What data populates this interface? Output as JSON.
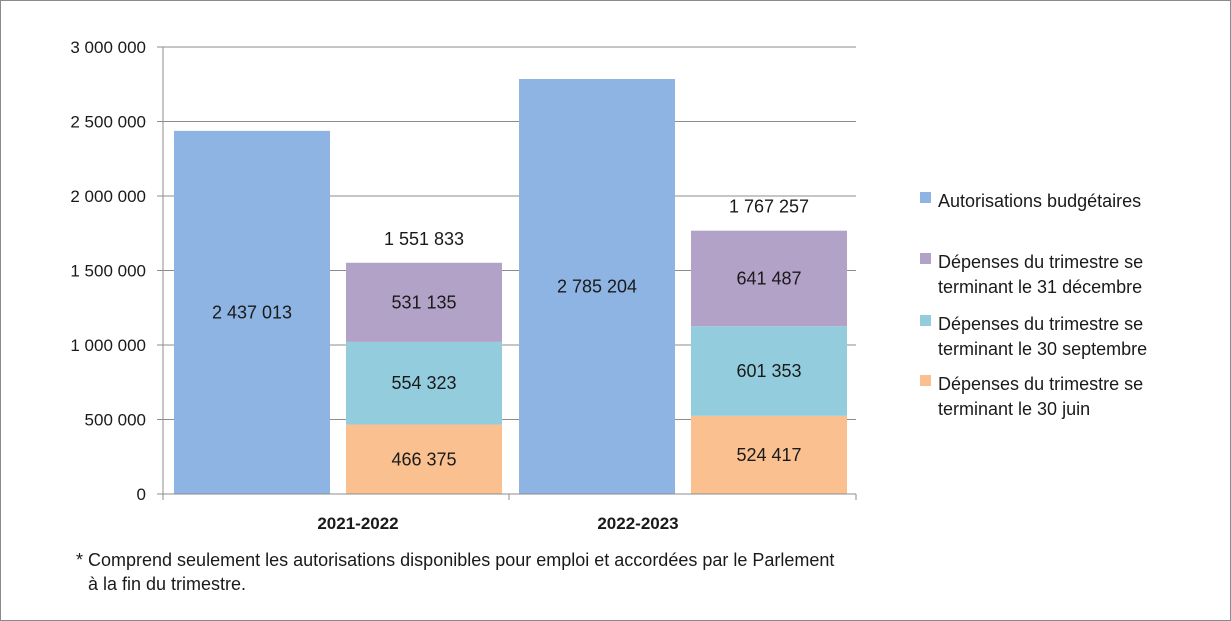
{
  "chart_data": {
    "type": "bar",
    "categories": [
      "2021-2022",
      "2022-2023"
    ],
    "y_ticks": [
      "0",
      "500 000",
      "1 000 000",
      "1 500 000",
      "2 000 000",
      "2 500 000",
      "3 000 000"
    ],
    "ylim": [
      0,
      3000000
    ],
    "grid": true,
    "legend_position": "right",
    "budget_series": {
      "name": "Autorisations budgétaires",
      "color": "#8eb4e3",
      "values": [
        2437013,
        2785204
      ],
      "labels": [
        "2 437 013",
        "2 785 204"
      ]
    },
    "stack_series": [
      {
        "name": "Dépenses du trimestre se terminant le 30 juin",
        "name_lines": [
          "Dépenses du trimestre se",
          "terminant le 30 juin"
        ],
        "color": "#fac090",
        "values": [
          466375,
          524417
        ],
        "labels": [
          "466 375",
          "524 417"
        ]
      },
      {
        "name": "Dépenses du trimestre se terminant le 30 septembre",
        "name_lines": [
          "Dépenses du trimestre se",
          "terminant le 30 septembre"
        ],
        "color": "#93cddd",
        "values": [
          554323,
          601353
        ],
        "labels": [
          "554 323",
          "601 353"
        ]
      },
      {
        "name": "Dépenses du trimestre se terminant le 31 décembre",
        "name_lines": [
          "Dépenses du trimestre se",
          "terminant le 31 décembre"
        ],
        "color": "#b3a2c7",
        "values": [
          531135,
          641487
        ],
        "labels": [
          "531 135",
          "641 487"
        ]
      }
    ],
    "stack_totals": [
      "1 551 833",
      "1 767 257"
    ],
    "legend_order": [
      "Autorisations budgétaires",
      "Dépenses du trimestre se terminant le 31 décembre",
      "Dépenses du trimestre se terminant le 30 septembre",
      "Dépenses du trimestre se terminant le 30 juin"
    ]
  },
  "footnote": {
    "line1": "* Comprend seulement les autorisations disponibles pour emploi et accordées par le Parlement",
    "line2": "à la fin du trimestre."
  }
}
